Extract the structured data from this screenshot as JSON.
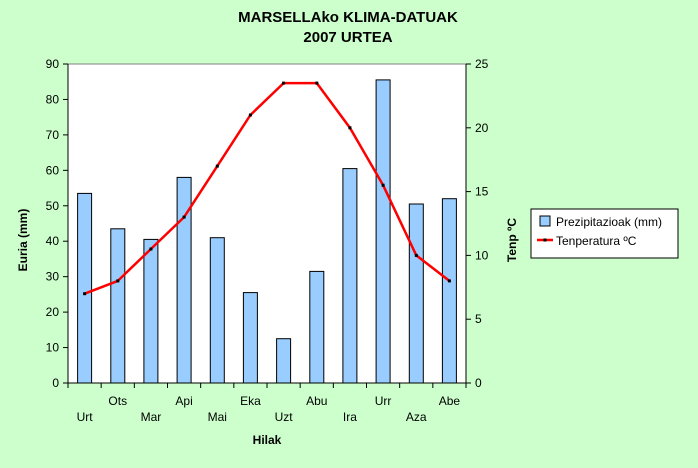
{
  "chart_data": {
    "type": "bar",
    "title": "MARSELLAko KLIMA-DATUAK",
    "subtitle": "2007 URTEA",
    "xlabel": "Hilak",
    "ylabel": "Euria  (mm)",
    "y2label": "Tenp ºC",
    "categories": [
      "Urt",
      "Ots",
      "Mar",
      "Api",
      "Mai",
      "Eka",
      "Uzt",
      "Abu",
      "Ira",
      "Urr",
      "Aza",
      "Abe"
    ],
    "ylim": [
      0,
      90
    ],
    "y2lim": [
      0,
      25
    ],
    "yticks": [
      "0",
      "10",
      "20",
      "30",
      "40",
      "50",
      "60",
      "70",
      "80",
      "90"
    ],
    "y2ticks": [
      "0",
      "5",
      "10",
      "15",
      "20",
      "25"
    ],
    "grid": false,
    "legend_position": "right",
    "series": [
      {
        "name": "Prezipitazioak (mm)",
        "kind": "bar",
        "axis": "left",
        "color": "#99ccff",
        "values": [
          53.5,
          43.5,
          40.5,
          58,
          41,
          25.5,
          12.5,
          31.5,
          60.5,
          85.5,
          50.5,
          52
        ]
      },
      {
        "name": "Tenperatura  ºC",
        "kind": "line",
        "axis": "right",
        "color": "#ff0000",
        "values": [
          7,
          8,
          10.5,
          13,
          17,
          21,
          23.5,
          23.5,
          20,
          15.5,
          10,
          8
        ]
      }
    ]
  }
}
